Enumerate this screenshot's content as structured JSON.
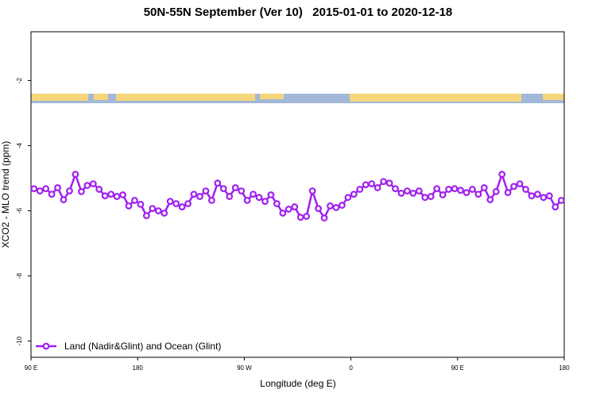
{
  "chart_data": {
    "type": "line",
    "title": "50N-55N September (Ver 10)   2015-01-01 to 2020-12-18",
    "x_label": "Longitude (deg E)",
    "y_label": "XCO2 - MLO trend (ppm)",
    "x": [
      92.5,
      97.5,
      102.5,
      107.5,
      112.5,
      117.5,
      122.5,
      127.5,
      132.5,
      137.5,
      142.5,
      147.5,
      152.5,
      157.5,
      162.5,
      167.5,
      172.5,
      177.5,
      182.5,
      187.5,
      192.5,
      197.5,
      202.5,
      207.5,
      212.5,
      217.5,
      222.5,
      227.5,
      232.5,
      237.5,
      242.5,
      247.5,
      252.5,
      257.5,
      262.5,
      267.5,
      272.5,
      277.5,
      282.5,
      287.5,
      292.5,
      297.5,
      302.5,
      307.5,
      312.5,
      317.5,
      322.5,
      327.5,
      332.5,
      337.5,
      342.5,
      347.5,
      352.5,
      357.5,
      362.5,
      367.5,
      372.5,
      377.5,
      382.5,
      387.5,
      392.5,
      397.5,
      402.5,
      407.5,
      412.5,
      417.5,
      422.5,
      427.5,
      432.5,
      437.5,
      442.5,
      447.5,
      452.5,
      457.5,
      462.5,
      467.5,
      472.5,
      477.5,
      482.5,
      487.5,
      492.5,
      497.5,
      502.5,
      507.5,
      512.5,
      517.5,
      522.5,
      527.5,
      532.5,
      537.5
    ],
    "series": [
      {
        "name": "Land (Nadir&Glint) and Ocean (Glint)",
        "color": "#a020f0",
        "values": [
          -5.32,
          -5.39,
          -5.32,
          -5.49,
          -5.29,
          -5.66,
          -5.39,
          -4.88,
          -5.41,
          -5.22,
          -5.17,
          -5.34,
          -5.54,
          -5.49,
          -5.56,
          -5.51,
          -5.85,
          -5.68,
          -5.8,
          -6.15,
          -5.93,
          -6.0,
          -6.07,
          -5.71,
          -5.78,
          -5.88,
          -5.78,
          -5.49,
          -5.56,
          -5.39,
          -5.68,
          -5.15,
          -5.32,
          -5.56,
          -5.29,
          -5.39,
          -5.68,
          -5.49,
          -5.59,
          -5.71,
          -5.51,
          -5.78,
          -6.07,
          -5.95,
          -5.88,
          -6.2,
          -6.17,
          -5.39,
          -5.93,
          -6.22,
          -5.85,
          -5.9,
          -5.83,
          -5.59,
          -5.49,
          -5.34,
          -5.2,
          -5.17,
          -5.29,
          -5.1,
          -5.15,
          -5.32,
          -5.46,
          -5.39,
          -5.46,
          -5.39,
          -5.59,
          -5.56,
          -5.32,
          -5.51,
          -5.34,
          -5.32,
          -5.37,
          -5.44,
          -5.34,
          -5.49,
          -5.29,
          -5.66,
          -5.41,
          -4.88,
          -5.44,
          -5.25,
          -5.17,
          -5.34,
          -5.54,
          -5.49,
          -5.59,
          -5.54,
          -5.88,
          -5.68
        ]
      }
    ],
    "xlim": [
      90,
      540
    ],
    "xticks": [
      {
        "value": 90,
        "label": "90 E"
      },
      180,
      {
        "value": 270,
        "label": "90 W"
      },
      {
        "value": 360,
        "label": "0"
      },
      {
        "value": 450,
        "label": "90 E"
      },
      {
        "value": 540,
        "label": "180"
      }
    ],
    "ylim": [
      -10.5,
      -0.5
    ],
    "yticks": [
      -10,
      -8,
      -6,
      -4,
      -2
    ],
    "legend": "lower left"
  }
}
